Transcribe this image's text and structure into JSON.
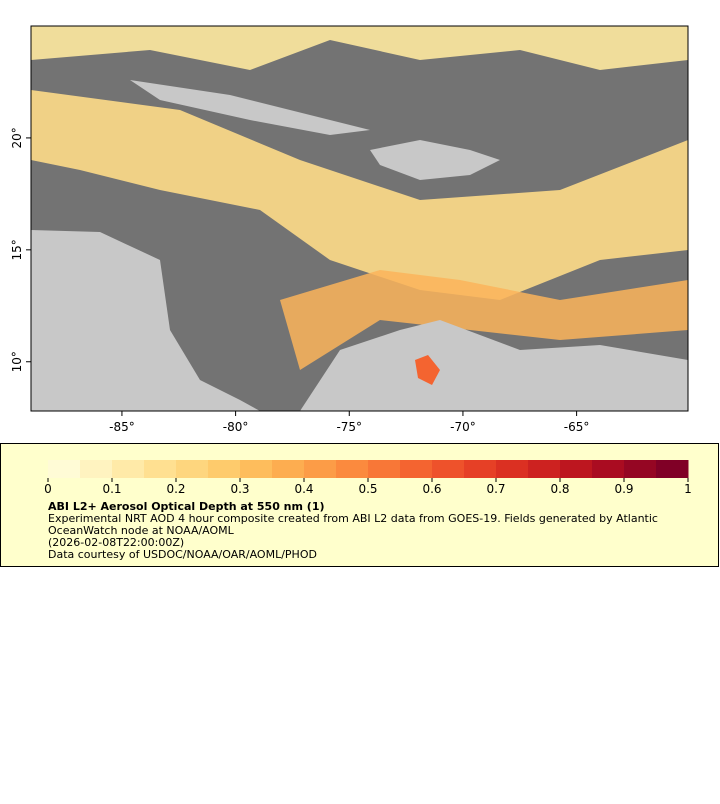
{
  "map": {
    "xlim": [
      -89,
      -60.1
    ],
    "ylim": [
      7.8,
      25
    ],
    "xticks": [
      {
        "value": -85,
        "label": "-85°"
      },
      {
        "value": -80,
        "label": "-80°"
      },
      {
        "value": -75,
        "label": "-75°"
      },
      {
        "value": -70,
        "label": "-70°"
      },
      {
        "value": -65,
        "label": "-65°"
      }
    ],
    "yticks": [
      {
        "value": 10,
        "label": "10°"
      },
      {
        "value": 15,
        "label": "15°"
      },
      {
        "value": 20,
        "label": "20°"
      }
    ]
  },
  "colorbar": {
    "range": [
      0,
      1
    ],
    "ticks": [
      0,
      0.1,
      0.2,
      0.3,
      0.4,
      0.5,
      0.6,
      0.7,
      0.8,
      0.9,
      1
    ],
    "colors": [
      "#fffbd6",
      "#fff3c0",
      "#ffeaa8",
      "#ffe091",
      "#fed67e",
      "#fecb6c",
      "#febd5c",
      "#fdad50",
      "#fc9c47",
      "#fb8a3e",
      "#f87737",
      "#f46430",
      "#ee522b",
      "#e64026",
      "#db3022",
      "#cd2220",
      "#bd161f",
      "#aa0c21",
      "#950623",
      "#800026"
    ]
  },
  "legend": {
    "title": "ABI L2+ Aerosol Optical Depth at 550 nm (1)",
    "lines": [
      "Experimental NRT AOD 4 hour composite created from ABI L2 data from GOES-19. Fields generated by Atlantic",
      "OceanWatch node at NOAA/AOML",
      "(2026-02-08T22:00:00Z)",
      "Data courtesy of USDOC/NOAA/OAR/AOML/PHOD"
    ]
  }
}
